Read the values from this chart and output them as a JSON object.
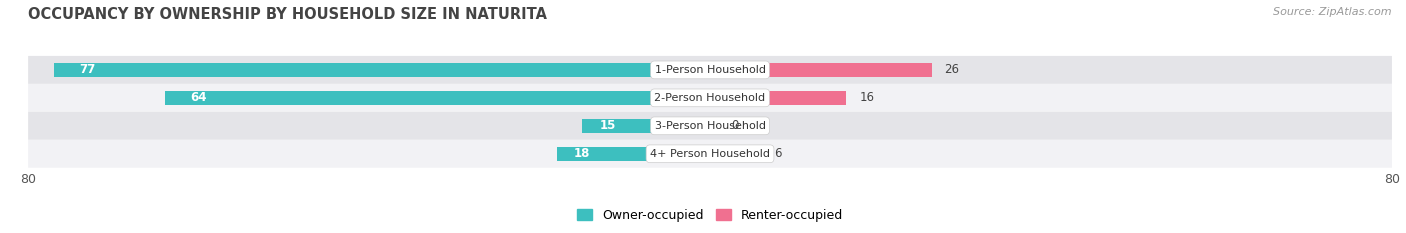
{
  "title": "OCCUPANCY BY OWNERSHIP BY HOUSEHOLD SIZE IN NATURITA",
  "source": "Source: ZipAtlas.com",
  "categories": [
    "1-Person Household",
    "2-Person Household",
    "3-Person Household",
    "4+ Person Household"
  ],
  "owner_values": [
    77,
    64,
    15,
    18
  ],
  "renter_values": [
    26,
    16,
    0,
    6
  ],
  "owner_color": "#3DBFBF",
  "renter_color": "#F07090",
  "row_bg_colors": [
    "#E4E4E8",
    "#F2F2F5",
    "#E4E4E8",
    "#F2F2F5"
  ],
  "label_bg_color": "#FFFFFF",
  "axis_max": 80,
  "title_fontsize": 10.5,
  "source_fontsize": 8,
  "tick_fontsize": 9,
  "cat_fontsize": 8,
  "value_fontsize": 8.5,
  "legend_fontsize": 9
}
